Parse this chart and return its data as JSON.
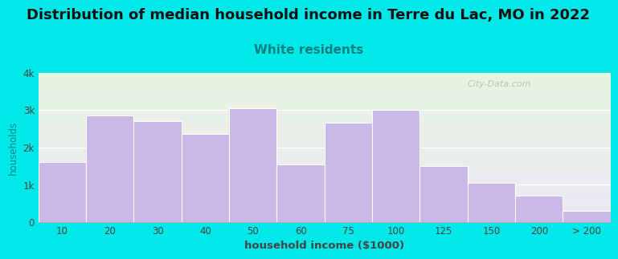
{
  "title": "Distribution of median household income in Terre du Lac, MO in 2022",
  "subtitle": "White residents",
  "xlabel": "household income ($1000)",
  "ylabel": "households",
  "bar_labels": [
    "10",
    "20",
    "30",
    "40",
    "50",
    "60",
    "75",
    "100",
    "125",
    "150",
    "200",
    "> 200"
  ],
  "bar_values": [
    1600,
    2850,
    2700,
    2350,
    3050,
    1550,
    2650,
    3000,
    1500,
    1050,
    700,
    300
  ],
  "bar_color": "#c9b8e8",
  "bar_edgecolor": "#ffffff",
  "background_outer": "#00e8e8",
  "background_plot_top": "#e6f5e0",
  "background_plot_bottom": "#ede8f5",
  "title_fontsize": 13,
  "subtitle_fontsize": 11,
  "title_color": "#111111",
  "subtitle_color": "#008080",
  "ylabel_color": "#008888",
  "xlabel_color": "#444444",
  "tick_color": "#444444",
  "ylim": [
    0,
    4000
  ],
  "yticks": [
    0,
    1000,
    2000,
    3000,
    4000
  ],
  "ytick_labels": [
    "0",
    "1k",
    "2k",
    "3k",
    "4k"
  ],
  "watermark": "City-Data.com"
}
